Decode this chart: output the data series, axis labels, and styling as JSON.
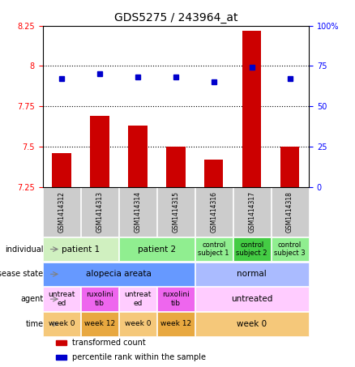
{
  "title": "GDS5275 / 243964_at",
  "samples": [
    "GSM1414312",
    "GSM1414313",
    "GSM1414314",
    "GSM1414315",
    "GSM1414316",
    "GSM1414317",
    "GSM1414318"
  ],
  "bar_values": [
    7.46,
    7.69,
    7.63,
    7.5,
    7.42,
    8.22,
    7.5
  ],
  "percentile_values": [
    67,
    70,
    68,
    68,
    65,
    74,
    67
  ],
  "ylim_left": [
    7.25,
    8.25
  ],
  "ylim_right": [
    0,
    100
  ],
  "yticks_left": [
    7.25,
    7.5,
    7.75,
    8.0,
    8.25
  ],
  "yticks_right": [
    0,
    25,
    50,
    75,
    100
  ],
  "ytick_labels_left": [
    "7.25",
    "7.5",
    "7.75",
    "8",
    "8.25"
  ],
  "ytick_labels_right": [
    "0",
    "25",
    "50",
    "75",
    "100%"
  ],
  "hlines": [
    7.5,
    7.75,
    8.0
  ],
  "bar_color": "#cc0000",
  "dot_color": "#0000cc",
  "bar_width": 0.5,
  "annotation_rows": [
    {
      "label": "individual",
      "cells": [
        {
          "text": "patient 1",
          "span": [
            0,
            1
          ],
          "color": "#d0f0c0",
          "fontsize": 7.5
        },
        {
          "text": "patient 2",
          "span": [
            2,
            3
          ],
          "color": "#90ee90",
          "fontsize": 7.5
        },
        {
          "text": "control\nsubject 1",
          "span": [
            4,
            4
          ],
          "color": "#90ee90",
          "fontsize": 6
        },
        {
          "text": "control\nsubject 2",
          "span": [
            5,
            5
          ],
          "color": "#44cc44",
          "fontsize": 6
        },
        {
          "text": "control\nsubject 3",
          "span": [
            6,
            6
          ],
          "color": "#90ee90",
          "fontsize": 6
        }
      ]
    },
    {
      "label": "disease state",
      "cells": [
        {
          "text": "alopecia areata",
          "span": [
            0,
            3
          ],
          "color": "#6699ff",
          "fontsize": 7.5
        },
        {
          "text": "normal",
          "span": [
            4,
            6
          ],
          "color": "#aabbff",
          "fontsize": 7.5
        }
      ]
    },
    {
      "label": "agent",
      "cells": [
        {
          "text": "untreat\ned",
          "span": [
            0,
            0
          ],
          "color": "#ffccff",
          "fontsize": 6.5
        },
        {
          "text": "ruxolini\ntib",
          "span": [
            1,
            1
          ],
          "color": "#ee66ee",
          "fontsize": 6.5
        },
        {
          "text": "untreat\ned",
          "span": [
            2,
            2
          ],
          "color": "#ffccff",
          "fontsize": 6.5
        },
        {
          "text": "ruxolini\ntib",
          "span": [
            3,
            3
          ],
          "color": "#ee66ee",
          "fontsize": 6.5
        },
        {
          "text": "untreated",
          "span": [
            4,
            6
          ],
          "color": "#ffccff",
          "fontsize": 7.5
        }
      ]
    },
    {
      "label": "time",
      "cells": [
        {
          "text": "week 0",
          "span": [
            0,
            0
          ],
          "color": "#f5c87a",
          "fontsize": 6.5
        },
        {
          "text": "week 12",
          "span": [
            1,
            1
          ],
          "color": "#e8a840",
          "fontsize": 6.5
        },
        {
          "text": "week 0",
          "span": [
            2,
            2
          ],
          "color": "#f5c87a",
          "fontsize": 6.5
        },
        {
          "text": "week 12",
          "span": [
            3,
            3
          ],
          "color": "#e8a840",
          "fontsize": 6.5
        },
        {
          "text": "week 0",
          "span": [
            4,
            6
          ],
          "color": "#f5c87a",
          "fontsize": 7.5
        }
      ]
    }
  ],
  "legend_items": [
    {
      "color": "#cc0000",
      "label": "transformed count"
    },
    {
      "color": "#0000cc",
      "label": "percentile rank within the sample"
    }
  ],
  "background_color": "#ffffff",
  "grid_color": "#aaaaaa",
  "sample_box_color": "#cccccc"
}
